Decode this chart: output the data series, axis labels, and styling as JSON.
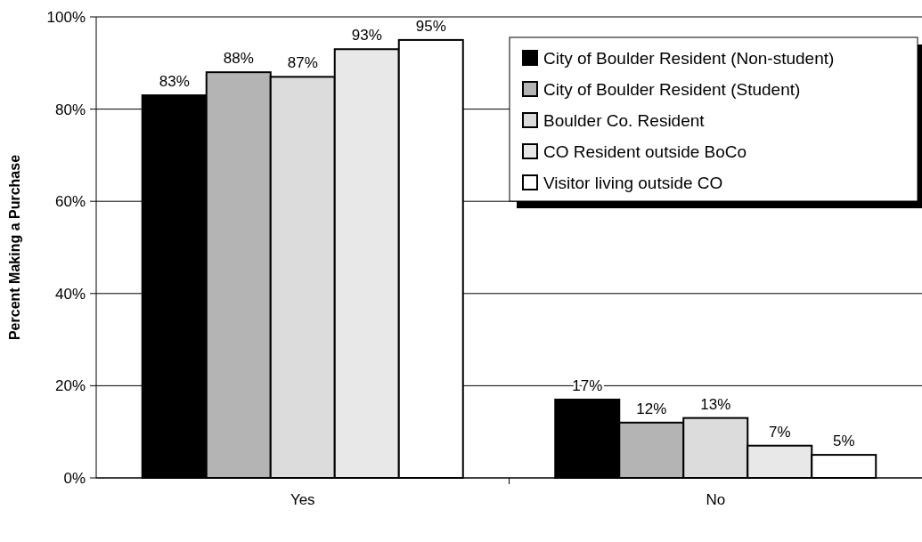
{
  "chart_data": {
    "type": "bar",
    "ylabel": "Percent Making a Purchase",
    "categories": [
      "Yes",
      "No"
    ],
    "series": [
      {
        "name": "City of Boulder Resident (Non-student)",
        "color": "#000000",
        "values": [
          83,
          17
        ],
        "value_labels": [
          "83%",
          "17%"
        ]
      },
      {
        "name": "City of Boulder Resident (Student)",
        "color": "#b4b4b4",
        "values": [
          88,
          12
        ],
        "value_labels": [
          "88%",
          "12%"
        ]
      },
      {
        "name": "Boulder Co. Resident",
        "color": "#dcdcdc",
        "values": [
          87,
          13
        ],
        "value_labels": [
          "87%",
          "13%"
        ]
      },
      {
        "name": "CO Resident outside BoCo",
        "color": "#e8e8e8",
        "values": [
          93,
          7
        ],
        "value_labels": [
          "93%",
          "7%"
        ]
      },
      {
        "name": "Visitor living outside CO",
        "color": "#ffffff",
        "values": [
          95,
          5
        ],
        "value_labels": [
          "95%",
          "5%"
        ]
      }
    ],
    "ylim": [
      0,
      100
    ],
    "yticks": [
      {
        "value": 0,
        "label": "0%"
      },
      {
        "value": 20,
        "label": "20%"
      },
      {
        "value": 40,
        "label": "40%"
      },
      {
        "value": 60,
        "label": "60%"
      },
      {
        "value": 80,
        "label": "80%"
      },
      {
        "value": 100,
        "label": "100%"
      }
    ],
    "grid": "y",
    "legend": "top right"
  }
}
